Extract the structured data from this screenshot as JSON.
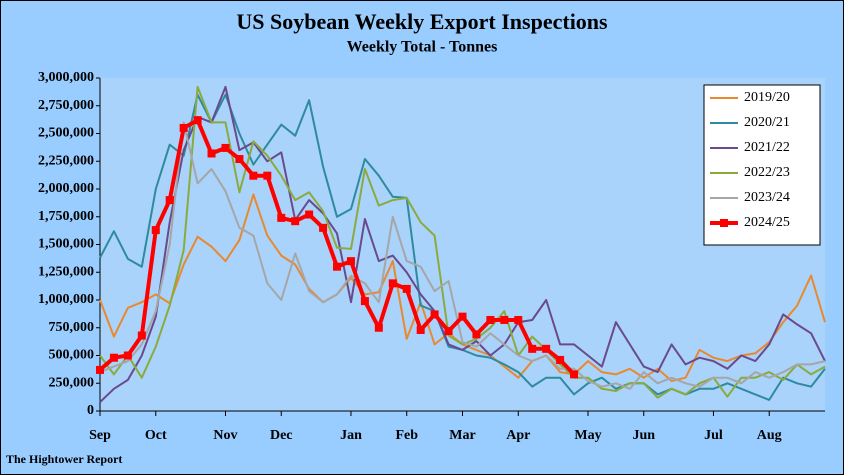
{
  "chart_data": {
    "type": "line",
    "title": "US Soybean Weekly Export Inspections",
    "subtitle": "Weekly Total - Tonnes",
    "footer": "The Hightower Report",
    "categories": [
      "Sep",
      null,
      null,
      null,
      "Oct",
      null,
      null,
      null,
      null,
      "Nov",
      null,
      null,
      null,
      "Dec",
      null,
      null,
      null,
      null,
      "Jan",
      null,
      null,
      null,
      "Feb",
      null,
      null,
      null,
      "Mar",
      null,
      null,
      null,
      "Apr",
      null,
      null,
      null,
      null,
      "May",
      null,
      null,
      null,
      "Jun",
      null,
      null,
      null,
      null,
      "Jul",
      null,
      null,
      null,
      "Aug",
      null,
      null,
      null,
      null
    ],
    "ylim": [
      0,
      3000000
    ],
    "yticks": [
      0,
      {
        "value": 250000,
        "label": "250,000"
      },
      {
        "value": 500000,
        "label": "500,000"
      },
      {
        "value": 750000,
        "label": "750,000"
      },
      {
        "value": 1000000,
        "label": "1,000,000"
      },
      {
        "value": 1250000,
        "label": "1,250,000"
      },
      {
        "value": 1500000,
        "label": "1,500,000"
      },
      {
        "value": 1750000,
        "label": "1,750,000"
      },
      {
        "value": 2000000,
        "label": "2,000,000"
      },
      {
        "value": 2250000,
        "label": "2,250,000"
      },
      {
        "value": 2500000,
        "label": "2,500,000"
      },
      {
        "value": 2750000,
        "label": "2,750,000"
      },
      {
        "value": 3000000,
        "label": "3,000,000"
      }
    ],
    "grid": false,
    "legend": "upper right",
    "series": [
      {
        "name": "2019/20",
        "color": "#e8892f",
        "values": [
          1000000,
          670000,
          930000,
          980000,
          1050000,
          970000,
          1320000,
          1570000,
          1480000,
          1350000,
          1540000,
          1950000,
          1580000,
          1400000,
          1320000,
          1100000,
          980000,
          1050000,
          1200000,
          1050000,
          1070000,
          1350000,
          650000,
          980000,
          600000,
          700000,
          600000,
          550000,
          500000,
          400000,
          300000,
          450000,
          500000,
          350000,
          330000,
          450000,
          350000,
          330000,
          380000,
          300000,
          380000,
          270000,
          300000,
          550000,
          480000,
          450000,
          500000,
          520000,
          620000,
          800000,
          950000,
          1220000,
          800000
        ]
      },
      {
        "name": "2020/21",
        "color": "#2e8a9e",
        "values": [
          1380000,
          1620000,
          1370000,
          1300000,
          2000000,
          2400000,
          2300000,
          2850000,
          2600000,
          2850000,
          2500000,
          2220000,
          2400000,
          2580000,
          2480000,
          2800000,
          2200000,
          1750000,
          1820000,
          2270000,
          2120000,
          1930000,
          1920000,
          950000,
          900000,
          580000,
          550000,
          500000,
          480000,
          420000,
          350000,
          220000,
          300000,
          300000,
          150000,
          250000,
          300000,
          200000,
          250000,
          250000,
          150000,
          200000,
          150000,
          200000,
          200000,
          250000,
          200000,
          150000,
          100000,
          300000,
          250000,
          220000,
          380000
        ]
      },
      {
        "name": "2021/22",
        "color": "#6a4a8c",
        "values": [
          80000,
          200000,
          280000,
          500000,
          850000,
          1700000,
          2350000,
          2650000,
          2600000,
          2920000,
          2350000,
          2420000,
          2250000,
          2330000,
          1720000,
          1900000,
          1780000,
          1600000,
          980000,
          1730000,
          1350000,
          1400000,
          1250000,
          1050000,
          900000,
          600000,
          550000,
          630000,
          500000,
          600000,
          800000,
          820000,
          1000000,
          600000,
          600000,
          500000,
          400000,
          800000,
          600000,
          400000,
          350000,
          600000,
          420000,
          480000,
          450000,
          380000,
          500000,
          450000,
          600000,
          870000,
          780000,
          700000,
          450000
        ]
      },
      {
        "name": "2022/23",
        "color": "#8aab3c",
        "values": [
          500000,
          330000,
          500000,
          300000,
          580000,
          950000,
          1450000,
          2920000,
          2600000,
          2600000,
          1970000,
          2430000,
          2300000,
          2120000,
          1900000,
          1970000,
          1800000,
          1470000,
          1460000,
          2180000,
          1850000,
          1900000,
          1920000,
          1700000,
          1580000,
          680000,
          600000,
          650000,
          750000,
          900000,
          500000,
          670000,
          550000,
          420000,
          300000,
          300000,
          200000,
          180000,
          250000,
          250000,
          120000,
          200000,
          150000,
          250000,
          300000,
          130000,
          300000,
          300000,
          350000,
          280000,
          420000,
          330000,
          400000
        ]
      },
      {
        "name": "2023/24",
        "color": "#a6a6a6",
        "values": [
          350000,
          400000,
          450000,
          600000,
          900000,
          1500000,
          2600000,
          2050000,
          2180000,
          1980000,
          1650000,
          1580000,
          1150000,
          1000000,
          1420000,
          1080000,
          980000,
          1050000,
          1220000,
          1150000,
          980000,
          1750000,
          1350000,
          1300000,
          1080000,
          1170000,
          620000,
          580000,
          700000,
          600000,
          500000,
          450000,
          500000,
          380000,
          380000,
          270000,
          220000,
          250000,
          200000,
          350000,
          250000,
          300000,
          250000,
          220000,
          300000,
          300000,
          250000,
          350000,
          300000,
          350000,
          420000,
          420000,
          450000
        ]
      },
      {
        "name": "2024/25",
        "color": "#ff0000",
        "marker": "square",
        "values": [
          370000,
          480000,
          500000,
          680000,
          1630000,
          1900000,
          2550000,
          2620000,
          2320000,
          2370000,
          2270000,
          2120000,
          2120000,
          1740000,
          1710000,
          1770000,
          1650000,
          1300000,
          1350000,
          990000,
          750000,
          1150000,
          1100000,
          730000,
          870000,
          720000,
          850000,
          690000,
          820000,
          820000,
          820000,
          560000,
          560000,
          460000,
          330000,
          null,
          null,
          null,
          null,
          null,
          null,
          null,
          null,
          null,
          null,
          null,
          null,
          null,
          null,
          null,
          null,
          null,
          null
        ]
      }
    ]
  }
}
